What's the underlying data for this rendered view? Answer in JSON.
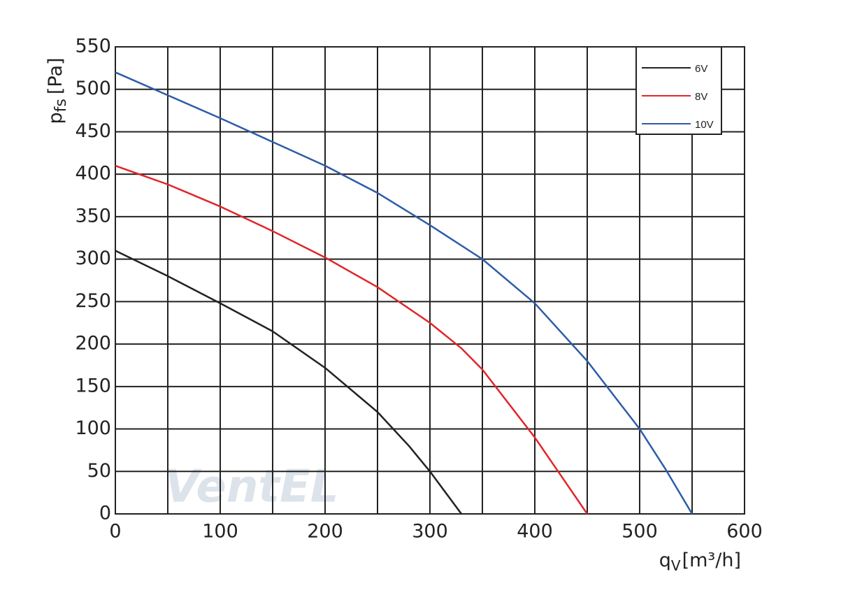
{
  "chart_data": {
    "type": "line",
    "watermark": "VentEL",
    "y_label": {
      "symbol": "p",
      "subscript": "fs",
      "unit": "[Pa]"
    },
    "x_label": {
      "symbol": "q",
      "subscript": "V",
      "unit": "[m³/h]"
    },
    "xlim": [
      0,
      600
    ],
    "xticks": [
      0,
      100,
      200,
      300,
      400,
      500,
      600
    ],
    "x_minor_grid": [
      50,
      150,
      250,
      350,
      450,
      550
    ],
    "ylim": [
      0,
      550
    ],
    "yticks": [
      0,
      50,
      100,
      150,
      200,
      250,
      300,
      350,
      400,
      450,
      500,
      550
    ],
    "grid": true,
    "legend": "upper right",
    "series": [
      {
        "name": "6V",
        "color": "#222222",
        "x": [
          0,
          50,
          100,
          150,
          200,
          250,
          280,
          300,
          315,
          330
        ],
        "values": [
          310,
          280,
          248,
          215,
          172,
          120,
          80,
          50,
          25,
          0
        ]
      },
      {
        "name": "8V",
        "color": "#e0262a",
        "x": [
          0,
          50,
          100,
          150,
          200,
          250,
          300,
          330,
          350,
          400,
          425,
          450
        ],
        "values": [
          410,
          388,
          362,
          333,
          302,
          267,
          225,
          195,
          170,
          90,
          45,
          0
        ]
      },
      {
        "name": "10V",
        "color": "#2e5ca8",
        "x": [
          0,
          50,
          100,
          150,
          200,
          250,
          300,
          350,
          400,
          450,
          500,
          525,
          550
        ],
        "values": [
          520,
          493,
          466,
          438,
          410,
          378,
          340,
          300,
          248,
          180,
          100,
          52,
          0
        ]
      }
    ]
  }
}
